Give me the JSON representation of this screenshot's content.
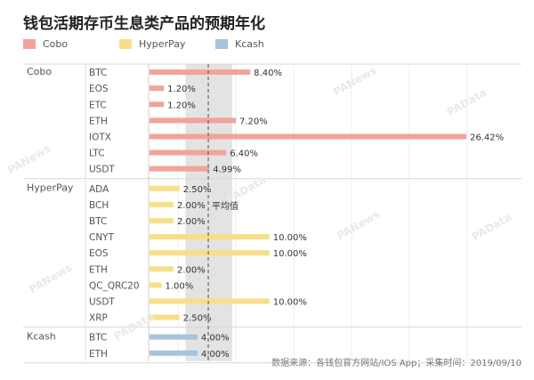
{
  "title": "钱包活期存币生息类产品的预期年化",
  "source": "数据来源：各钱包官方网站/IOS App；采集时间：2019/09/10",
  "watermarks": [
    "PANews",
    "PAData",
    "PANews",
    "PAData",
    "PANews",
    "PAData",
    "PANews",
    "PAData"
  ],
  "chart_data": {
    "type": "bar",
    "orientation": "horizontal",
    "title": "钱包活期存币生息类产品的预期年化",
    "xlim": [
      0,
      26.42
    ],
    "grid": true,
    "legend_position": "top-left",
    "value_format": "percent-2-decimals",
    "reference_line": {
      "label": "平均值",
      "value": 4.9,
      "band": [
        3.0,
        6.9
      ]
    },
    "series": [
      {
        "name": "Cobo",
        "color": "#f2a39b",
        "group_label": "Cobo",
        "items": [
          {
            "token": "BTC",
            "value": 8.4
          },
          {
            "token": "EOS",
            "value": 1.2
          },
          {
            "token": "ETC",
            "value": 1.2
          },
          {
            "token": "ETH",
            "value": 7.2
          },
          {
            "token": "IOTX",
            "value": 26.42
          },
          {
            "token": "LTC",
            "value": 6.4
          },
          {
            "token": "USDT",
            "value": 4.99
          }
        ]
      },
      {
        "name": "HyperPay",
        "color": "#f7df8a",
        "group_label": "HyperPay",
        "items": [
          {
            "token": "ADA",
            "value": 2.5
          },
          {
            "token": "BCH",
            "value": 2.0
          },
          {
            "token": "BTC",
            "value": 2.0
          },
          {
            "token": "CNYT",
            "value": 10.0
          },
          {
            "token": "EOS",
            "value": 10.0
          },
          {
            "token": "ETH",
            "value": 2.0
          },
          {
            "token": "QC_QRC20",
            "value": 1.0
          },
          {
            "token": "USDT",
            "value": 10.0
          },
          {
            "token": "XRP",
            "value": 2.5
          }
        ]
      },
      {
        "name": "Kcash",
        "color": "#a9c3da",
        "group_label": "Kcash",
        "items": [
          {
            "token": "BTC",
            "value": 4.0
          },
          {
            "token": "ETH",
            "value": 4.0
          }
        ]
      }
    ]
  }
}
